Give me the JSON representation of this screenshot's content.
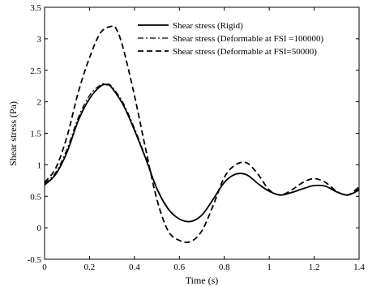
{
  "chart_data": {
    "type": "line",
    "title": "",
    "xlabel": "Time (s)",
    "ylabel": "Shear stress (Pa)",
    "xlim": [
      0,
      1.4
    ],
    "ylim": [
      -0.5,
      3.5
    ],
    "xticks": [
      0,
      0.2,
      0.4,
      0.6,
      0.8,
      1,
      1.2,
      1.4
    ],
    "yticks": [
      -0.5,
      0,
      0.5,
      1,
      1.5,
      2,
      2.5,
      3,
      3.5
    ],
    "xtick_labels": [
      "0",
      "0.2",
      "0.4",
      "0.6",
      "0.8",
      "1",
      "1.2",
      "1.4"
    ],
    "ytick_labels": [
      "-0.5",
      "0",
      "0.5",
      "1",
      "1.5",
      "2",
      "2.5",
      "3",
      "3.5"
    ],
    "grid": false,
    "legend_position": "top-right",
    "series": [
      {
        "name": "Shear stress (Rigid)",
        "style": "solid",
        "color": "#000000",
        "x": [
          0,
          0.05,
          0.1,
          0.15,
          0.2,
          0.25,
          0.28,
          0.3,
          0.35,
          0.4,
          0.45,
          0.5,
          0.55,
          0.6,
          0.65,
          0.7,
          0.75,
          0.8,
          0.85,
          0.9,
          0.95,
          1.0,
          1.05,
          1.1,
          1.15,
          1.2,
          1.25,
          1.3,
          1.35,
          1.4
        ],
        "y": [
          0.68,
          0.85,
          1.2,
          1.7,
          2.05,
          2.25,
          2.27,
          2.22,
          1.95,
          1.55,
          1.1,
          0.62,
          0.3,
          0.14,
          0.1,
          0.2,
          0.45,
          0.72,
          0.85,
          0.84,
          0.7,
          0.58,
          0.52,
          0.56,
          0.62,
          0.67,
          0.66,
          0.57,
          0.52,
          0.6
        ]
      },
      {
        "name": "Shear stress (Deformable at FSI =100000)",
        "style": "dashdot",
        "color": "#000000",
        "x": [
          0,
          0.05,
          0.1,
          0.15,
          0.2,
          0.25,
          0.28,
          0.3,
          0.35,
          0.4,
          0.45,
          0.5,
          0.55,
          0.6,
          0.65,
          0.7,
          0.75,
          0.8,
          0.85,
          0.9,
          0.95,
          1.0,
          1.05,
          1.1,
          1.15,
          1.2,
          1.25,
          1.3,
          1.35,
          1.4
        ],
        "y": [
          0.7,
          0.88,
          1.25,
          1.75,
          2.1,
          2.27,
          2.28,
          2.24,
          1.98,
          1.58,
          1.12,
          0.63,
          0.31,
          0.14,
          0.1,
          0.2,
          0.45,
          0.72,
          0.85,
          0.84,
          0.7,
          0.58,
          0.52,
          0.56,
          0.62,
          0.67,
          0.66,
          0.57,
          0.52,
          0.62
        ]
      },
      {
        "name": "Shear stress (Deformable at FSI=50000)",
        "style": "dashed",
        "color": "#000000",
        "x": [
          0,
          0.05,
          0.1,
          0.15,
          0.2,
          0.25,
          0.3,
          0.32,
          0.35,
          0.4,
          0.45,
          0.5,
          0.55,
          0.6,
          0.65,
          0.7,
          0.75,
          0.8,
          0.85,
          0.9,
          0.95,
          1.0,
          1.05,
          1.1,
          1.15,
          1.2,
          1.25,
          1.3,
          1.35,
          1.4
        ],
        "y": [
          0.72,
          0.95,
          1.45,
          2.15,
          2.7,
          3.1,
          3.2,
          3.15,
          2.85,
          2.1,
          1.25,
          0.45,
          -0.05,
          -0.2,
          -0.22,
          -0.05,
          0.35,
          0.8,
          1.0,
          1.03,
          0.85,
          0.6,
          0.52,
          0.6,
          0.72,
          0.78,
          0.72,
          0.58,
          0.52,
          0.65
        ]
      }
    ]
  }
}
